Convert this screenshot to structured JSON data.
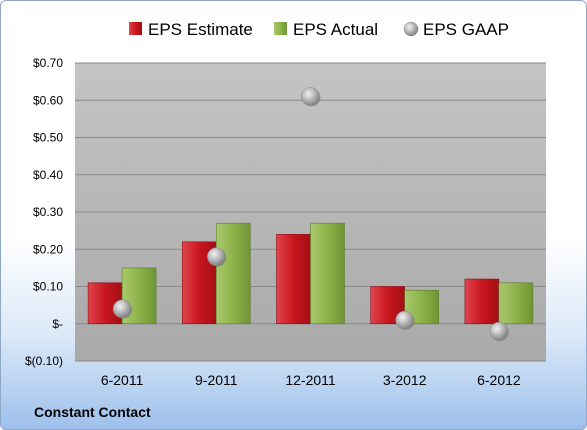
{
  "chart_data": {
    "type": "bar",
    "categories": [
      "6-2011",
      "9-2011",
      "12-2011",
      "3-2012",
      "6-2012"
    ],
    "series": [
      {
        "name": "EPS Estimate",
        "kind": "bar",
        "color": "#d0202a",
        "values": [
          0.11,
          0.22,
          0.24,
          0.1,
          0.12
        ]
      },
      {
        "name": "EPS Actual",
        "kind": "bar",
        "color": "#8db34a",
        "values": [
          0.15,
          0.27,
          0.27,
          0.09,
          0.11
        ]
      },
      {
        "name": "EPS GAAP",
        "kind": "scatter",
        "color": "#a8a8a8",
        "values": [
          0.04,
          0.18,
          0.61,
          0.01,
          -0.02
        ]
      }
    ],
    "ylim": [
      -0.1,
      0.7
    ],
    "yticks": [
      {
        "value": 0.7,
        "label": "$0.70"
      },
      {
        "value": 0.6,
        "label": "$0.60"
      },
      {
        "value": 0.5,
        "label": "$0.50"
      },
      {
        "value": 0.4,
        "label": "$0.40"
      },
      {
        "value": 0.3,
        "label": "$0.30"
      },
      {
        "value": 0.2,
        "label": "$0.20"
      },
      {
        "value": 0.1,
        "label": "$0.10"
      },
      {
        "value": 0.0,
        "label": "$-"
      },
      {
        "value": -0.1,
        "label": "$(0.10)"
      }
    ],
    "grid": true,
    "legend_position": "top",
    "plot_background": "#b5b5b5"
  },
  "footer": {
    "company": "Constant Contact"
  }
}
